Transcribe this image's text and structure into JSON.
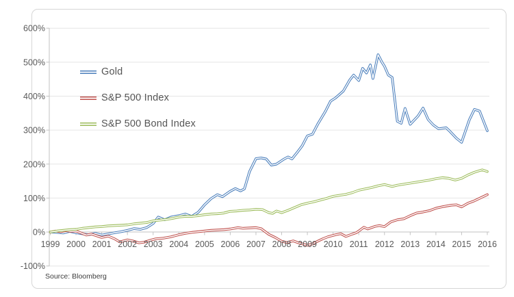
{
  "chart_data": {
    "type": "line",
    "title": "",
    "source_note": "Source: Bloomberg",
    "xlim": [
      1999,
      2016
    ],
    "ylim": [
      -100,
      600
    ],
    "grid": true,
    "legend_position": "inside-top-left",
    "axis_label_color": "#595959",
    "gridline_color": "#e5e5e5",
    "axis_line_color": "#c2c2c2",
    "x_ticks": [
      1999,
      2000,
      2001,
      2002,
      2003,
      2004,
      2005,
      2006,
      2007,
      2008,
      2009,
      2010,
      2011,
      2012,
      2013,
      2014,
      2015,
      2016
    ],
    "y_ticks": [
      {
        "value": 600,
        "label": "600%"
      },
      {
        "value": 500,
        "label": "500%"
      },
      {
        "value": 400,
        "label": "400%"
      },
      {
        "value": 300,
        "label": "300%"
      },
      {
        "value": 200,
        "label": "200%"
      },
      {
        "value": 100,
        "label": "100%"
      },
      {
        "value": 0,
        "label": "0%"
      },
      {
        "value": -100,
        "label": "-100%"
      }
    ],
    "series": [
      {
        "name": "Gold",
        "color": "#4a7ebb",
        "points": [
          [
            1999,
            0
          ],
          [
            1999.25,
            -1
          ],
          [
            1999.5,
            -3
          ],
          [
            1999.75,
            2
          ],
          [
            2000,
            -2
          ],
          [
            2000.3,
            -6
          ],
          [
            2000.5,
            -8
          ],
          [
            2000.75,
            -4
          ],
          [
            2001,
            -9
          ],
          [
            2001.3,
            -5
          ],
          [
            2001.5,
            -2
          ],
          [
            2001.75,
            1
          ],
          [
            2002,
            5
          ],
          [
            2002.25,
            10
          ],
          [
            2002.5,
            8
          ],
          [
            2002.75,
            13
          ],
          [
            2003,
            25
          ],
          [
            2003.2,
            44
          ],
          [
            2003.45,
            36
          ],
          [
            2003.7,
            44
          ],
          [
            2004,
            48
          ],
          [
            2004.25,
            53
          ],
          [
            2004.5,
            46
          ],
          [
            2004.75,
            58
          ],
          [
            2005,
            80
          ],
          [
            2005.25,
            98
          ],
          [
            2005.5,
            110
          ],
          [
            2005.7,
            104
          ],
          [
            2006,
            120
          ],
          [
            2006.2,
            128
          ],
          [
            2006.4,
            121
          ],
          [
            2006.55,
            127
          ],
          [
            2006.75,
            178
          ],
          [
            2007,
            216
          ],
          [
            2007.2,
            218
          ],
          [
            2007.4,
            215
          ],
          [
            2007.6,
            197
          ],
          [
            2007.8,
            200
          ],
          [
            2008.1,
            215
          ],
          [
            2008.25,
            221
          ],
          [
            2008.4,
            215
          ],
          [
            2008.6,
            234
          ],
          [
            2008.8,
            254
          ],
          [
            2009,
            283
          ],
          [
            2009.2,
            288
          ],
          [
            2009.4,
            317
          ],
          [
            2009.7,
            355
          ],
          [
            2009.9,
            385
          ],
          [
            2010.1,
            395
          ],
          [
            2010.4,
            415
          ],
          [
            2010.65,
            448
          ],
          [
            2010.8,
            462
          ],
          [
            2011,
            446
          ],
          [
            2011.15,
            482
          ],
          [
            2011.3,
            468
          ],
          [
            2011.45,
            492
          ],
          [
            2011.55,
            452
          ],
          [
            2011.75,
            522
          ],
          [
            2011.9,
            500
          ],
          [
            2012,
            488
          ],
          [
            2012.15,
            462
          ],
          [
            2012.3,
            455
          ],
          [
            2012.5,
            326
          ],
          [
            2012.65,
            320
          ],
          [
            2012.8,
            364
          ],
          [
            2013,
            317
          ],
          [
            2013.3,
            341
          ],
          [
            2013.5,
            365
          ],
          [
            2013.7,
            331
          ],
          [
            2013.9,
            315
          ],
          [
            2014.1,
            304
          ],
          [
            2014.4,
            307
          ],
          [
            2014.55,
            296
          ],
          [
            2014.8,
            276
          ],
          [
            2015,
            264
          ],
          [
            2015.3,
            330
          ],
          [
            2015.5,
            361
          ],
          [
            2015.7,
            356
          ],
          [
            2016,
            298
          ]
        ]
      },
      {
        "name": "S&P 500 Index",
        "color": "#bf4f4b",
        "points": [
          [
            1999,
            0
          ],
          [
            1999.2,
            3
          ],
          [
            1999.4,
            1
          ],
          [
            1999.6,
            4
          ],
          [
            1999.8,
            2
          ],
          [
            2000,
            3
          ],
          [
            2000.2,
            -3
          ],
          [
            2000.4,
            -9
          ],
          [
            2000.6,
            -6
          ],
          [
            2000.8,
            -11
          ],
          [
            2001,
            -16
          ],
          [
            2001.25,
            -12
          ],
          [
            2001.5,
            -20
          ],
          [
            2001.7,
            -29
          ],
          [
            2002,
            -23
          ],
          [
            2002.2,
            -26
          ],
          [
            2002.45,
            -32
          ],
          [
            2002.65,
            -30
          ],
          [
            2002.9,
            -24
          ],
          [
            2003.1,
            -20
          ],
          [
            2003.4,
            -18
          ],
          [
            2003.7,
            -14
          ],
          [
            2004,
            -8
          ],
          [
            2004.25,
            -4
          ],
          [
            2004.5,
            -1
          ],
          [
            2004.75,
            1
          ],
          [
            2005,
            3
          ],
          [
            2005.25,
            5
          ],
          [
            2005.5,
            6
          ],
          [
            2005.75,
            7
          ],
          [
            2006,
            9
          ],
          [
            2006.3,
            13
          ],
          [
            2006.5,
            11
          ],
          [
            2006.75,
            12
          ],
          [
            2007,
            13
          ],
          [
            2007.2,
            10
          ],
          [
            2007.5,
            -7
          ],
          [
            2007.75,
            -16
          ],
          [
            2008,
            -27
          ],
          [
            2008.2,
            -31
          ],
          [
            2008.45,
            -26
          ],
          [
            2008.7,
            -33
          ],
          [
            2009,
            -39
          ],
          [
            2009.2,
            -35
          ],
          [
            2009.4,
            -27
          ],
          [
            2009.6,
            -20
          ],
          [
            2009.8,
            -14
          ],
          [
            2010.1,
            -8
          ],
          [
            2010.3,
            -5
          ],
          [
            2010.5,
            -13
          ],
          [
            2010.75,
            -6
          ],
          [
            2010.9,
            -2
          ],
          [
            2011,
            3
          ],
          [
            2011.2,
            14
          ],
          [
            2011.35,
            9
          ],
          [
            2011.65,
            17
          ],
          [
            2011.8,
            19
          ],
          [
            2012,
            16
          ],
          [
            2012.25,
            30
          ],
          [
            2012.5,
            36
          ],
          [
            2012.75,
            39
          ],
          [
            2013,
            48
          ],
          [
            2013.25,
            56
          ],
          [
            2013.5,
            59
          ],
          [
            2013.75,
            63
          ],
          [
            2014,
            70
          ],
          [
            2014.3,
            75
          ],
          [
            2014.6,
            79
          ],
          [
            2014.8,
            80
          ],
          [
            2015,
            74
          ],
          [
            2015.25,
            85
          ],
          [
            2015.5,
            92
          ],
          [
            2015.75,
            101
          ],
          [
            2016,
            110
          ]
        ]
      },
      {
        "name": "S&P 500 Bond Index",
        "color": "#9bbb59",
        "points": [
          [
            1999,
            0
          ],
          [
            1999.25,
            3
          ],
          [
            1999.5,
            5
          ],
          [
            1999.75,
            7
          ],
          [
            2000,
            8
          ],
          [
            2000.25,
            11
          ],
          [
            2000.5,
            13
          ],
          [
            2000.75,
            15
          ],
          [
            2001,
            16
          ],
          [
            2001.25,
            18
          ],
          [
            2001.5,
            19
          ],
          [
            2001.75,
            20
          ],
          [
            2002,
            21
          ],
          [
            2002.25,
            24
          ],
          [
            2002.5,
            26
          ],
          [
            2002.75,
            28
          ],
          [
            2003,
            33
          ],
          [
            2003.25,
            35
          ],
          [
            2003.5,
            37
          ],
          [
            2003.75,
            40
          ],
          [
            2004,
            44
          ],
          [
            2004.25,
            46
          ],
          [
            2004.5,
            46
          ],
          [
            2004.75,
            48
          ],
          [
            2005,
            51
          ],
          [
            2005.25,
            53
          ],
          [
            2005.5,
            54
          ],
          [
            2005.75,
            56
          ],
          [
            2006,
            61
          ],
          [
            2006.25,
            62
          ],
          [
            2006.5,
            64
          ],
          [
            2006.75,
            65
          ],
          [
            2007,
            67
          ],
          [
            2007.25,
            66
          ],
          [
            2007.5,
            57
          ],
          [
            2007.65,
            55
          ],
          [
            2007.8,
            62
          ],
          [
            2008,
            57
          ],
          [
            2008.25,
            64
          ],
          [
            2008.5,
            72
          ],
          [
            2008.75,
            80
          ],
          [
            2009,
            85
          ],
          [
            2009.25,
            89
          ],
          [
            2009.5,
            94
          ],
          [
            2009.75,
            99
          ],
          [
            2010,
            105
          ],
          [
            2010.25,
            108
          ],
          [
            2010.5,
            111
          ],
          [
            2010.75,
            116
          ],
          [
            2011,
            123
          ],
          [
            2011.25,
            127
          ],
          [
            2011.5,
            131
          ],
          [
            2011.75,
            136
          ],
          [
            2012,
            140
          ],
          [
            2012.3,
            134
          ],
          [
            2012.5,
            138
          ],
          [
            2012.75,
            141
          ],
          [
            2013,
            144
          ],
          [
            2013.25,
            147
          ],
          [
            2013.5,
            150
          ],
          [
            2013.75,
            153
          ],
          [
            2014,
            157
          ],
          [
            2014.25,
            160
          ],
          [
            2014.5,
            158
          ],
          [
            2014.75,
            153
          ],
          [
            2015,
            158
          ],
          [
            2015.25,
            168
          ],
          [
            2015.5,
            176
          ],
          [
            2015.8,
            183
          ],
          [
            2016,
            178
          ]
        ]
      }
    ]
  }
}
